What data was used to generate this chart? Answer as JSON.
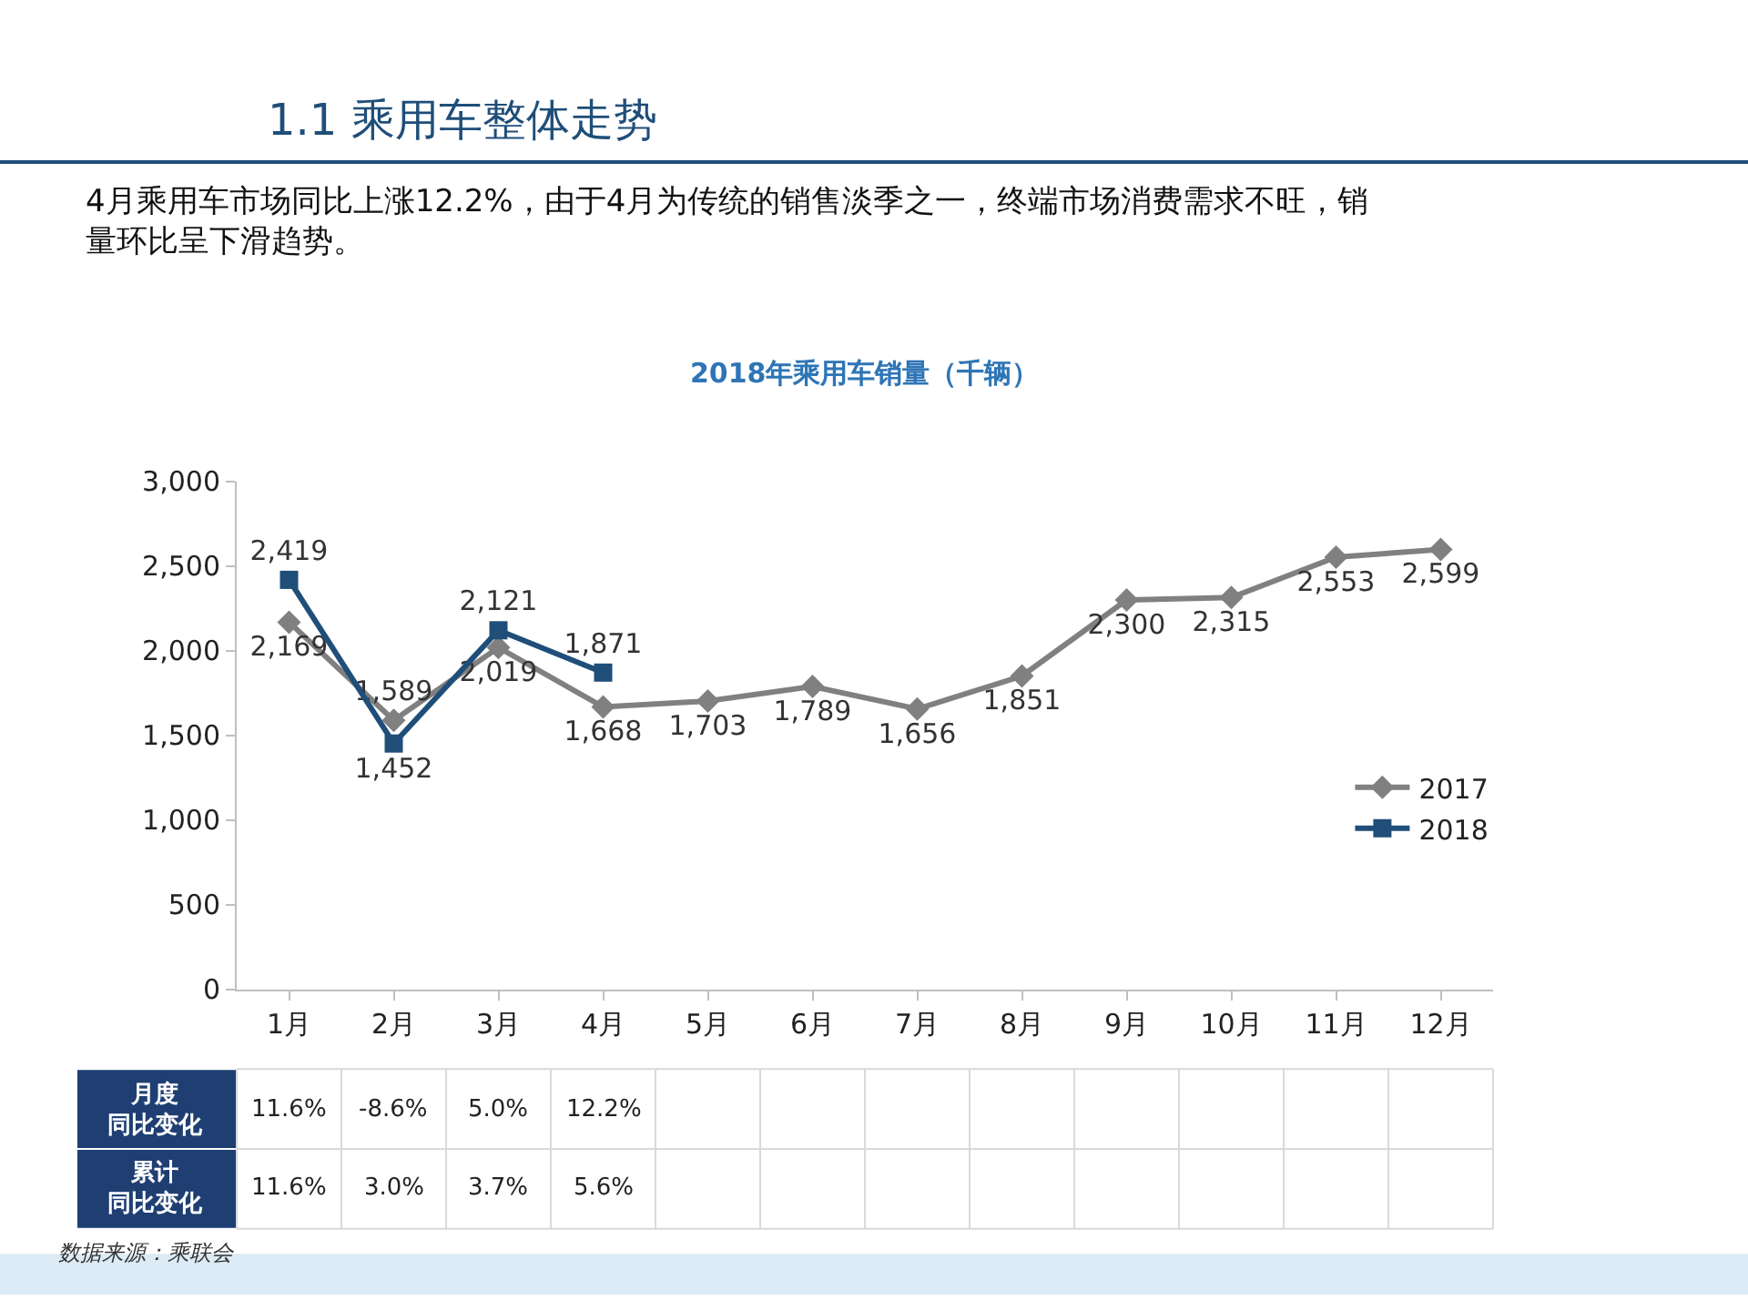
{
  "chart_data": [
    {
      "type": "line",
      "title": "1.1 乘用车整体走势",
      "subtitle": "4月乘用车市场同比上涨12.2%，由于4月为传统的销售淡季之一，终端市场消费需求不旺，销量环比呈下滑趋势。",
      "annotations": [
        "2018年乘用车销量（千辆）",
        "数据来源：乘联会"
      ],
      "categories": [
        "1月",
        "2月",
        "3月",
        "4月",
        "5月",
        "6月",
        "7月",
        "8月",
        "9月",
        "10月",
        "11月",
        "12月"
      ],
      "series": [
        {
          "name": "2017",
          "color": "#808080",
          "marker": "diamond",
          "values": [
            2169,
            1589,
            2019,
            1668,
            1703,
            1789,
            1656,
            1851,
            2300,
            2315,
            2553,
            2599
          ],
          "value_labels": [
            "2,169",
            "1,589",
            "2,019",
            "1,668",
            "1,703",
            "1,789",
            "1,656",
            "1,851",
            "2,300",
            "2,315",
            "2,553",
            "2,599"
          ]
        },
        {
          "name": "2018",
          "color": "#1f4e79",
          "marker": "square",
          "values": [
            2419,
            1452,
            2121,
            1871,
            null,
            null,
            null,
            null,
            null,
            null,
            null,
            null
          ],
          "value_labels": [
            "2,419",
            "1,452",
            "2,121",
            "1,871",
            null,
            null,
            null,
            null,
            null,
            null,
            null,
            null
          ]
        }
      ],
      "ylim": [
        0,
        3000
      ],
      "yticks": [
        0,
        500,
        {
          "value": 1000,
          "label": "1,000"
        },
        {
          "value": 1500,
          "label": "1,500"
        },
        {
          "value": 2000,
          "label": "2,000"
        },
        {
          "value": 2500,
          "label": "2,500"
        },
        {
          "value": 3000,
          "label": "3,000"
        }
      ],
      "legend": "right",
      "line_style": "solid"
    },
    {
      "type": "other",
      "y_categories": [
        "月度同比变化",
        "累计同比变化"
      ],
      "cell_labels": [
        [
          "11.6%",
          "-8.6%",
          "5.0%",
          "12.2%",
          null,
          null,
          null,
          null,
          null,
          null,
          null,
          null
        ],
        [
          "11.6%",
          "3.0%",
          "3.7%",
          "5.6%",
          null,
          null,
          null,
          null,
          null,
          null,
          null,
          null
        ]
      ]
    }
  ]
}
